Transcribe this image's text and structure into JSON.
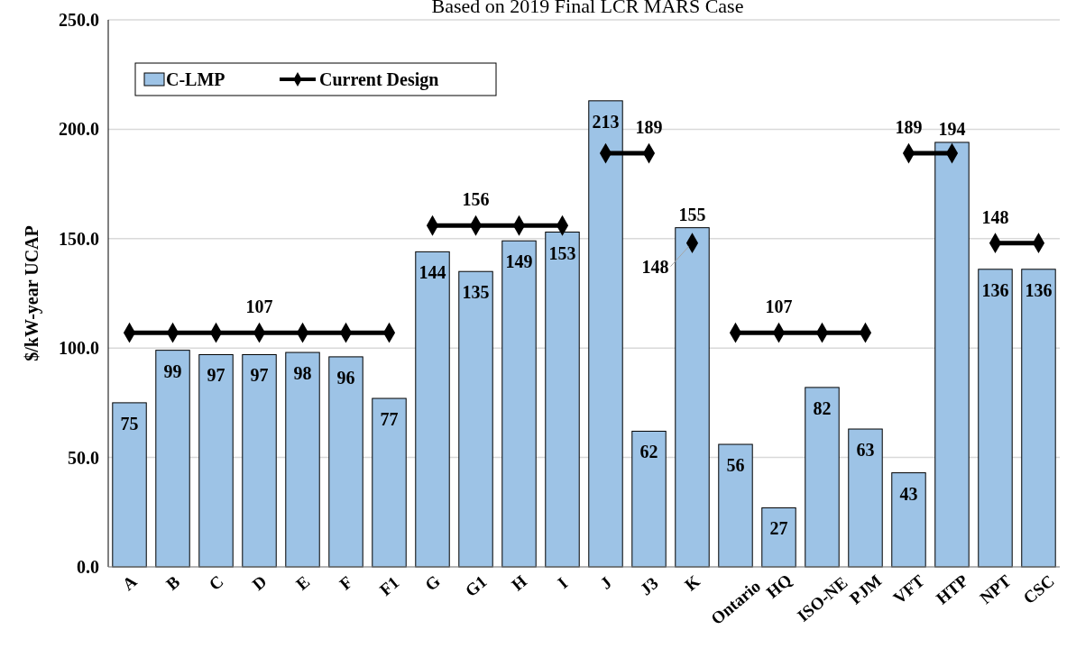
{
  "chart_data": {
    "type": "bar",
    "title": "Based on 2019 Final LCR MARS Case",
    "ylabel": "$/kW-year UCAP",
    "categories": [
      "A",
      "B",
      "C",
      "D",
      "E",
      "F",
      "F1",
      "G",
      "G1",
      "H",
      "I",
      "J",
      "J3",
      "K",
      "Ontario",
      "HQ",
      "ISO-NE",
      "PJM",
      "VFT",
      "HTP",
      "NPT",
      "CSC"
    ],
    "series": [
      {
        "name": "C-LMP",
        "color": "#9dc3e6",
        "values": [
          75,
          99,
          97,
          97,
          98,
          96,
          77,
          144,
          135,
          149,
          153,
          213,
          62,
          155,
          56,
          27,
          82,
          63,
          43,
          194,
          136,
          136
        ]
      },
      {
        "name": "Current Design",
        "type": "line",
        "color": "#000000",
        "marker": "diamond",
        "values": [
          107,
          107,
          107,
          107,
          107,
          107,
          107,
          null,
          null,
          null,
          null,
          null,
          null,
          null,
          null,
          null,
          null,
          null,
          null,
          null,
          null,
          null
        ],
        "value_labels": [
          null,
          null,
          null,
          "107",
          null,
          null,
          null,
          null,
          null,
          null,
          null,
          null,
          null,
          null,
          null,
          null,
          null,
          null,
          null,
          null,
          null,
          null
        ]
      },
      {
        "type": "line",
        "color": "#000000",
        "marker": "diamond",
        "values": [
          null,
          null,
          null,
          null,
          null,
          null,
          null,
          156,
          156,
          156,
          156,
          null,
          null,
          null,
          null,
          null,
          null,
          null,
          null,
          null,
          null,
          null
        ],
        "value_labels": [
          null,
          null,
          null,
          null,
          null,
          null,
          null,
          null,
          "156",
          null,
          null,
          null,
          null,
          null,
          null,
          null,
          null,
          null,
          null,
          null,
          null,
          null
        ]
      },
      {
        "type": "line",
        "color": "#000000",
        "marker": "diamond",
        "values": [
          null,
          null,
          null,
          null,
          null,
          null,
          null,
          null,
          null,
          null,
          null,
          189,
          189,
          null,
          null,
          null,
          null,
          null,
          null,
          null,
          null,
          null
        ],
        "value_labels": [
          null,
          null,
          null,
          null,
          null,
          null,
          null,
          null,
          null,
          null,
          null,
          null,
          "189",
          null,
          null,
          null,
          null,
          null,
          null,
          null,
          null,
          null
        ]
      },
      {
        "type": "scatter",
        "color": "#000000",
        "marker": "diamond",
        "values": [
          null,
          null,
          null,
          null,
          null,
          null,
          null,
          null,
          null,
          null,
          null,
          null,
          null,
          148,
          null,
          null,
          null,
          null,
          null,
          null,
          null,
          null
        ],
        "value_labels": [
          null,
          null,
          null,
          null,
          null,
          null,
          null,
          null,
          null,
          null,
          null,
          null,
          null,
          "148",
          null,
          null,
          null,
          null,
          null,
          null,
          null,
          null
        ]
      },
      {
        "type": "line",
        "color": "#000000",
        "marker": "diamond",
        "values": [
          null,
          null,
          null,
          null,
          null,
          null,
          null,
          null,
          null,
          null,
          null,
          null,
          null,
          null,
          107,
          107,
          107,
          107,
          null,
          null,
          null,
          null
        ],
        "value_labels": [
          null,
          null,
          null,
          null,
          null,
          null,
          null,
          null,
          null,
          null,
          null,
          null,
          null,
          null,
          null,
          "107",
          null,
          null,
          null,
          null,
          null,
          null
        ]
      },
      {
        "type": "line",
        "color": "#000000",
        "marker": "diamond",
        "values": [
          null,
          null,
          null,
          null,
          null,
          null,
          null,
          null,
          null,
          null,
          null,
          null,
          null,
          null,
          null,
          null,
          null,
          null,
          189,
          189,
          null,
          null
        ],
        "value_labels": [
          null,
          null,
          null,
          null,
          null,
          null,
          null,
          null,
          null,
          null,
          null,
          null,
          null,
          null,
          null,
          null,
          null,
          null,
          "189",
          null,
          null,
          null
        ]
      },
      {
        "type": "line",
        "color": "#000000",
        "marker": "diamond",
        "values": [
          null,
          null,
          null,
          null,
          null,
          null,
          null,
          null,
          null,
          null,
          null,
          null,
          null,
          null,
          null,
          null,
          null,
          null,
          null,
          null,
          148,
          148
        ],
        "value_labels": [
          null,
          null,
          null,
          null,
          null,
          null,
          null,
          null,
          null,
          null,
          null,
          null,
          null,
          null,
          null,
          null,
          null,
          null,
          null,
          null,
          "148",
          null
        ]
      }
    ],
    "ylim": [
      0,
      250
    ],
    "yticks": [
      {
        "value": 0,
        "label": "0.0"
      },
      {
        "value": 50,
        "label": "50.0"
      },
      {
        "value": 100,
        "label": "100.0"
      },
      {
        "value": 150,
        "label": "150.0"
      },
      {
        "value": 200,
        "label": "200.0"
      },
      {
        "value": 250,
        "label": "250.0"
      }
    ],
    "grid": "y",
    "legend": "top left",
    "data_labels": true
  }
}
